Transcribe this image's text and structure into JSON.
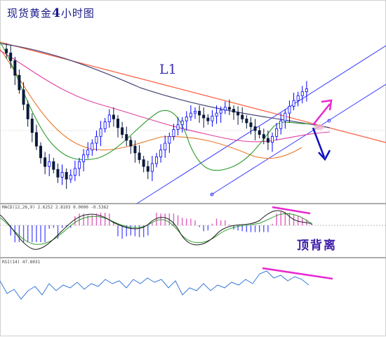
{
  "title": {
    "prefix": "现货黄金",
    "number": "4",
    "suffix": "小时图"
  },
  "main_label": "L1",
  "macd_header": "MACD(12,26,9) 2.6252 2.8103 0.0000 -0.5362",
  "rsi_header": "RSI(14) 47.8031",
  "divergence_label": "顶背离",
  "colors": {
    "background": "#ffffff",
    "bull_candle": "#0000ff",
    "bear_candle": "#0a1a3a",
    "ma_fast": "#2e9c2e",
    "ma_mid": "#e040a0",
    "ma_long": "#e8782a",
    "ma_slow": "#4a4a7a",
    "trendline_l1": "#ff5a3c",
    "channel": "#3a3aff",
    "arrow_up": "#e62ad0",
    "arrow_down": "#1010c0",
    "macd_hist_pos": "#e060c0",
    "macd_hist_neg": "#5a5aff",
    "rsi_line": "#3a7ad8",
    "divergence_line": "#e62ad0"
  },
  "chart_data": [
    {
      "type": "candlestick",
      "title": "现货黄金4小时图",
      "annotations": [
        "L1"
      ],
      "close": [
        1452,
        1448,
        1440,
        1425,
        1410,
        1395,
        1380,
        1366,
        1352,
        1340,
        1331,
        1336,
        1328,
        1320,
        1325,
        1318,
        1322,
        1329,
        1336,
        1343,
        1348,
        1355,
        1362,
        1370,
        1377,
        1384,
        1380,
        1371,
        1364,
        1358,
        1352,
        1345,
        1338,
        1331,
        1326,
        1334,
        1341,
        1348,
        1355,
        1362,
        1369,
        1374,
        1378,
        1382,
        1386,
        1388,
        1384,
        1381,
        1378,
        1383,
        1386,
        1389,
        1392,
        1390,
        1387,
        1384,
        1380,
        1376,
        1372,
        1368,
        1364,
        1360,
        1356,
        1362,
        1370,
        1378,
        1386,
        1393,
        1399,
        1404,
        1408,
        1411
      ],
      "indicators": [
        "MA-fast",
        "MA-mid",
        "MA-long",
        "MA-slow"
      ]
    },
    {
      "type": "bar",
      "title": "MACD(12,26,9)",
      "values": [
        2.6252,
        2.8103,
        0.0,
        -0.5362
      ]
    },
    {
      "type": "line",
      "title": "RSI(14)",
      "values": [
        47.8031
      ]
    }
  ]
}
